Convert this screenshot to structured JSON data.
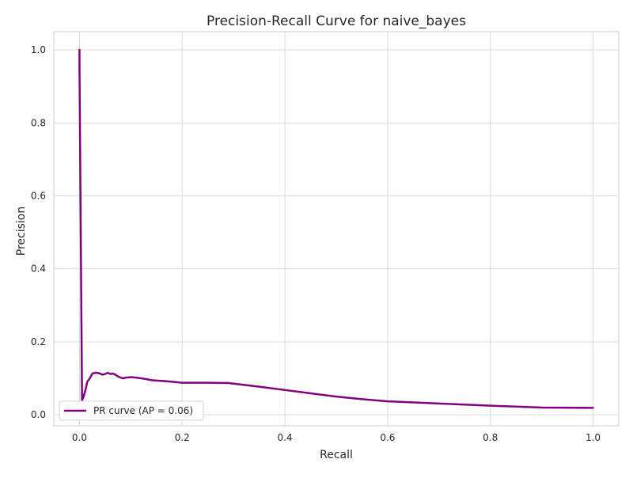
{
  "chart_data": {
    "type": "line",
    "title": "Precision-Recall Curve for naive_bayes",
    "xlabel": "Recall",
    "ylabel": "Precision",
    "xlim": [
      -0.05,
      1.05
    ],
    "ylim": [
      -0.03,
      1.05
    ],
    "xticks": [
      0.0,
      0.2,
      0.4,
      0.6,
      0.8,
      1.0
    ],
    "xtick_labels": [
      "0.0",
      "0.2",
      "0.4",
      "0.6",
      "0.8",
      "1.0"
    ],
    "yticks": [
      0.0,
      0.2,
      0.4,
      0.6,
      0.8,
      1.0
    ],
    "ytick_labels": [
      "0.0",
      "0.2",
      "0.4",
      "0.6",
      "0.8",
      "1.0"
    ],
    "grid": true,
    "legend": {
      "position": "lower-left",
      "entries": [
        "PR curve (AP = 0.06)"
      ]
    },
    "series": [
      {
        "name": "PR curve (AP = 0.06)",
        "color": "#800080",
        "x": [
          0.0,
          0.0,
          0.005,
          0.008,
          0.012,
          0.015,
          0.02,
          0.025,
          0.03,
          0.035,
          0.04,
          0.045,
          0.05,
          0.055,
          0.06,
          0.065,
          0.07,
          0.075,
          0.08,
          0.085,
          0.09,
          0.1,
          0.11,
          0.12,
          0.13,
          0.14,
          0.15,
          0.17,
          0.2,
          0.25,
          0.29,
          0.35,
          0.4,
          0.45,
          0.5,
          0.55,
          0.6,
          0.7,
          0.8,
          0.9,
          1.0
        ],
        "y": [
          1.0,
          0.96,
          0.04,
          0.05,
          0.07,
          0.09,
          0.1,
          0.113,
          0.115,
          0.115,
          0.113,
          0.11,
          0.112,
          0.115,
          0.112,
          0.113,
          0.11,
          0.105,
          0.102,
          0.1,
          0.102,
          0.103,
          0.102,
          0.1,
          0.098,
          0.095,
          0.094,
          0.092,
          0.088,
          0.088,
          0.087,
          0.077,
          0.068,
          0.059,
          0.05,
          0.043,
          0.037,
          0.031,
          0.025,
          0.02,
          0.019
        ]
      }
    ]
  }
}
